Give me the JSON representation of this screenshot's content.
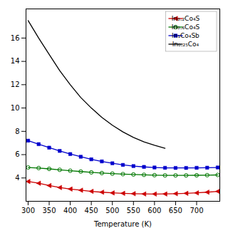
{
  "chart_data": {
    "type": "line",
    "xlabel": "Temperature (K)",
    "x": [
      300,
      325,
      350,
      375,
      400,
      425,
      450,
      475,
      500,
      525,
      550,
      575,
      600,
      625,
      650,
      675,
      700,
      725,
      750
    ],
    "series": [
      {
        "name": "In₀.₂Co₄S",
        "color": "#cc0000",
        "marker": "triangle-left",
        "values": [
          3.7,
          3.55,
          3.35,
          3.18,
          3.05,
          2.95,
          2.85,
          2.78,
          2.72,
          2.68,
          2.65,
          2.63,
          2.62,
          2.63,
          2.65,
          2.68,
          2.72,
          2.78,
          2.85
        ]
      },
      {
        "name": "In₀.₆Co₄S",
        "color": "#007700",
        "marker": "circle",
        "values": [
          4.9,
          4.85,
          4.78,
          4.7,
          4.62,
          4.55,
          4.48,
          4.42,
          4.37,
          4.33,
          4.3,
          4.27,
          4.24,
          4.22,
          4.22,
          4.22,
          4.23,
          4.24,
          4.26
        ]
      },
      {
        "name": "In₁Co₄Sb",
        "color": "#0000cc",
        "marker": "square",
        "values": [
          7.2,
          6.9,
          6.6,
          6.32,
          6.05,
          5.82,
          5.6,
          5.42,
          5.26,
          5.12,
          5.02,
          4.95,
          4.9,
          4.87,
          4.86,
          4.86,
          4.87,
          4.88,
          4.9
        ]
      },
      {
        "name": "In₀.₂₅Co₄",
        "color": "#000000",
        "marker": "none",
        "values": [
          17.5,
          16.0,
          14.6,
          13.2,
          12.0,
          10.9,
          10.0,
          9.2,
          8.52,
          7.95,
          7.48,
          7.1,
          6.8,
          6.55,
          null,
          null,
          null,
          null,
          null
        ]
      }
    ],
    "xlim": [
      295,
      755
    ],
    "xticks": [
      300,
      350,
      400,
      450,
      500,
      550,
      600,
      650,
      700
    ],
    "ylim": [
      2.0,
      18.5
    ],
    "yticks": [
      4,
      6,
      8,
      10,
      12,
      14,
      16
    ],
    "grid": false,
    "legend": "upper right"
  }
}
